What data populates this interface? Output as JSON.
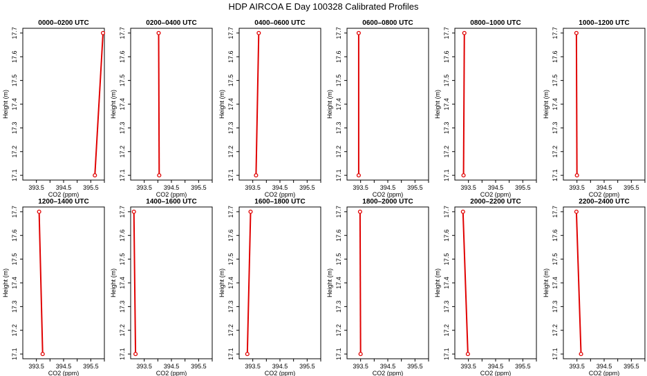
{
  "figure": {
    "title": "HDP AIRCOA E  Day 100328  Calibrated Profiles"
  },
  "colors": {
    "profile_line": "#e00000",
    "axes": "#000000",
    "background": "#ffffff"
  },
  "chart_data": [
    {
      "type": "line",
      "title": "0000–0200 UTC",
      "xlabel": "CO2 (ppm)",
      "ylabel": "Height (m)",
      "xlim": [
        393.0,
        396.0
      ],
      "ylim": [
        17.08,
        17.72
      ],
      "xticks": [
        "393.5",
        "394.5",
        "395.5"
      ],
      "yticks": [
        "17.1",
        "17.2",
        "17.3",
        "17.4",
        "17.5",
        "17.6",
        "17.7"
      ],
      "series": [
        {
          "x": [
            395.65,
            395.95
          ],
          "y": [
            17.1,
            17.7
          ]
        }
      ]
    },
    {
      "type": "line",
      "title": "0200–0400 UTC",
      "xlabel": "CO2 (ppm)",
      "ylabel": "Height (m)",
      "xlim": [
        393.0,
        396.0
      ],
      "ylim": [
        17.08,
        17.72
      ],
      "xticks": [
        "393.5",
        "394.5",
        "395.5"
      ],
      "yticks": [
        "17.1",
        "17.2",
        "17.3",
        "17.4",
        "17.5",
        "17.6",
        "17.7"
      ],
      "series": [
        {
          "x": [
            394.05,
            394.03
          ],
          "y": [
            17.1,
            17.7
          ]
        }
      ]
    },
    {
      "type": "line",
      "title": "0400–0600 UTC",
      "xlabel": "CO2 (ppm)",
      "ylabel": "Height (m)",
      "xlim": [
        393.0,
        396.0
      ],
      "ylim": [
        17.08,
        17.72
      ],
      "xticks": [
        "393.5",
        "394.5",
        "395.5"
      ],
      "yticks": [
        "17.1",
        "17.2",
        "17.3",
        "17.4",
        "17.5",
        "17.6",
        "17.7"
      ],
      "series": [
        {
          "x": [
            393.62,
            393.72
          ],
          "y": [
            17.1,
            17.7
          ]
        }
      ]
    },
    {
      "type": "line",
      "title": "0600–0800 UTC",
      "xlabel": "CO2 (ppm)",
      "ylabel": "Height (m)",
      "xlim": [
        393.0,
        396.0
      ],
      "ylim": [
        17.08,
        17.72
      ],
      "xticks": [
        "393.5",
        "394.5",
        "395.5"
      ],
      "yticks": [
        "17.1",
        "17.2",
        "17.3",
        "17.4",
        "17.5",
        "17.6",
        "17.7"
      ],
      "series": [
        {
          "x": [
            393.43,
            393.43
          ],
          "y": [
            17.1,
            17.7
          ]
        }
      ]
    },
    {
      "type": "line",
      "title": "0800–1000 UTC",
      "xlabel": "CO2 (ppm)",
      "ylabel": "Height (m)",
      "xlim": [
        393.0,
        396.0
      ],
      "ylim": [
        17.08,
        17.72
      ],
      "xticks": [
        "393.5",
        "394.5",
        "395.5"
      ],
      "yticks": [
        "17.1",
        "17.2",
        "17.3",
        "17.4",
        "17.5",
        "17.6",
        "17.7"
      ],
      "series": [
        {
          "x": [
            393.32,
            393.35
          ],
          "y": [
            17.1,
            17.7
          ]
        }
      ]
    },
    {
      "type": "line",
      "title": "1000–1200 UTC",
      "xlabel": "CO2 (ppm)",
      "ylabel": "Height (m)",
      "xlim": [
        393.0,
        396.0
      ],
      "ylim": [
        17.08,
        17.72
      ],
      "xticks": [
        "393.5",
        "394.5",
        "395.5"
      ],
      "yticks": [
        "17.1",
        "17.2",
        "17.3",
        "17.4",
        "17.5",
        "17.6",
        "17.7"
      ],
      "series": [
        {
          "x": [
            393.5,
            393.48
          ],
          "y": [
            17.1,
            17.7
          ]
        }
      ]
    },
    {
      "type": "line",
      "title": "1200–1400 UTC",
      "xlabel": "CO2 (ppm)",
      "ylabel": "Height (m)",
      "xlim": [
        393.0,
        396.0
      ],
      "ylim": [
        17.08,
        17.72
      ],
      "xticks": [
        "393.5",
        "394.5",
        "395.5"
      ],
      "yticks": [
        "17.1",
        "17.2",
        "17.3",
        "17.4",
        "17.5",
        "17.6",
        "17.7"
      ],
      "series": [
        {
          "x": [
            393.73,
            393.6
          ],
          "y": [
            17.1,
            17.7
          ]
        }
      ]
    },
    {
      "type": "line",
      "title": "1400–1600 UTC",
      "xlabel": "CO2 (ppm)",
      "ylabel": "Height (m)",
      "xlim": [
        393.0,
        396.0
      ],
      "ylim": [
        17.08,
        17.72
      ],
      "xticks": [
        "393.5",
        "394.5",
        "395.5"
      ],
      "yticks": [
        "17.1",
        "17.2",
        "17.3",
        "17.4",
        "17.5",
        "17.6",
        "17.7"
      ],
      "series": [
        {
          "x": [
            393.18,
            393.12
          ],
          "y": [
            17.1,
            17.7
          ]
        }
      ]
    },
    {
      "type": "line",
      "title": "1600–1800 UTC",
      "xlabel": "CO2 (ppm)",
      "ylabel": "Height (m)",
      "xlim": [
        393.0,
        396.0
      ],
      "ylim": [
        17.08,
        17.72
      ],
      "xticks": [
        "393.5",
        "394.5",
        "395.5"
      ],
      "yticks": [
        "17.1",
        "17.2",
        "17.3",
        "17.4",
        "17.5",
        "17.6",
        "17.7"
      ],
      "series": [
        {
          "x": [
            393.3,
            393.42
          ],
          "y": [
            17.1,
            17.7
          ]
        }
      ]
    },
    {
      "type": "line",
      "title": "1800–2000 UTC",
      "xlabel": "CO2 (ppm)",
      "ylabel": "Height (m)",
      "xlim": [
        393.0,
        396.0
      ],
      "ylim": [
        17.08,
        17.72
      ],
      "xticks": [
        "393.5",
        "394.5",
        "395.5"
      ],
      "yticks": [
        "17.1",
        "17.2",
        "17.3",
        "17.4",
        "17.5",
        "17.6",
        "17.7"
      ],
      "series": [
        {
          "x": [
            393.5,
            393.48
          ],
          "y": [
            17.1,
            17.7
          ]
        }
      ]
    },
    {
      "type": "line",
      "title": "2000–2200 UTC",
      "xlabel": "CO2 (ppm)",
      "ylabel": "Height (m)",
      "xlim": [
        393.0,
        396.0
      ],
      "ylim": [
        17.08,
        17.72
      ],
      "xticks": [
        "393.5",
        "394.5",
        "395.5"
      ],
      "yticks": [
        "17.1",
        "17.2",
        "17.3",
        "17.4",
        "17.5",
        "17.6",
        "17.7"
      ],
      "series": [
        {
          "x": [
            393.48,
            393.3
          ],
          "y": [
            17.1,
            17.7
          ]
        }
      ]
    },
    {
      "type": "line",
      "title": "2200–2400 UTC",
      "xlabel": "CO2 (ppm)",
      "ylabel": "Height (m)",
      "xlim": [
        393.0,
        396.0
      ],
      "ylim": [
        17.08,
        17.72
      ],
      "xticks": [
        "393.5",
        "394.5",
        "395.5"
      ],
      "yticks": [
        "17.1",
        "17.2",
        "17.3",
        "17.4",
        "17.5",
        "17.6",
        "17.7"
      ],
      "series": [
        {
          "x": [
            393.65,
            393.48
          ],
          "y": [
            17.1,
            17.7
          ]
        }
      ]
    }
  ]
}
